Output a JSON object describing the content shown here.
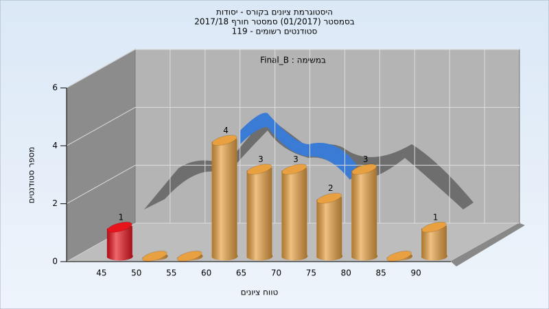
{
  "chart_data": {
    "type": "histogram",
    "title": [
      "היסטוגרמת ציונים בקורס - יסודות",
      "בסמסטר  (01/2017)  סמסטר חורף 2017/18",
      "119 - סטודנטים רשומים"
    ],
    "annotation": "Final_B : במשימה",
    "x_label": "טווח ציונים",
    "y_label": "מספר סטודנטים",
    "bins": [
      45,
      50,
      55,
      60,
      65,
      70,
      75,
      80,
      85,
      90,
      95
    ],
    "values": [
      1,
      0,
      0,
      4,
      3,
      3,
      2,
      3,
      0,
      1
    ],
    "colors": [
      "#e8141c",
      "#e8a040",
      "#e8a040",
      "#e8a040",
      "#e8a040",
      "#e8a040",
      "#e8a040",
      "#e8a040",
      "#e8a040",
      "#e8a040"
    ],
    "xlim": [
      40,
      95
    ],
    "xticks": [
      45,
      50,
      55,
      60,
      65,
      70,
      75,
      80,
      85,
      90
    ],
    "ylim": [
      0,
      6
    ],
    "yticks": [
      0,
      2,
      4,
      6
    ],
    "grid": true
  }
}
